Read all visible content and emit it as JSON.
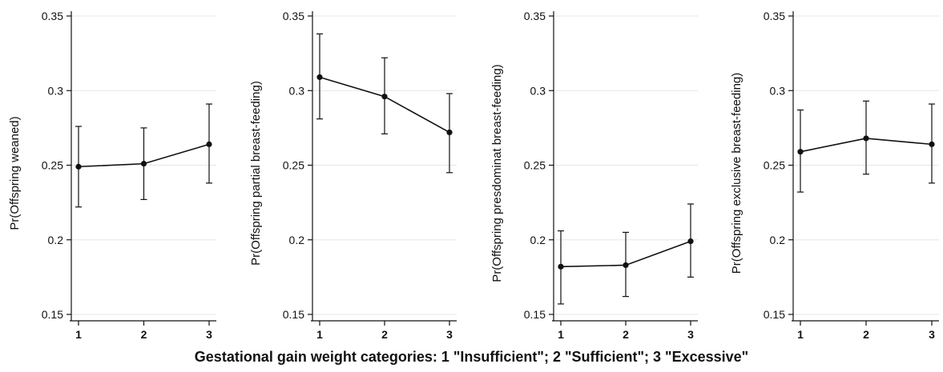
{
  "figure": {
    "xlabel": "Gestational gain weight categories: 1 \"Insufficient\"; 2 \"Sufficient\"; 3 \"Excessive\""
  },
  "chart_data": [
    {
      "type": "line",
      "ylabel": "Pr(Offspring weaned)",
      "x": [
        1,
        2,
        3
      ],
      "ylim": [
        0.15,
        0.35
      ],
      "yticks": [
        0.15,
        0.2,
        0.25,
        0.3,
        0.35
      ],
      "ytick_labels": [
        "0.15",
        "0.2",
        "0.25",
        "0.3",
        "0.35"
      ],
      "xtick_labels": [
        "1",
        "2",
        "3"
      ],
      "grid": true,
      "series": [
        {
          "values": [
            0.249,
            0.251,
            0.264
          ],
          "ci_low": [
            0.222,
            0.227,
            0.238
          ],
          "ci_high": [
            0.276,
            0.275,
            0.291
          ]
        }
      ]
    },
    {
      "type": "line",
      "ylabel": "Pr(Offspring partial breast-feeding)",
      "x": [
        1,
        2,
        3
      ],
      "ylim": [
        0.15,
        0.35
      ],
      "yticks": [
        0.15,
        0.2,
        0.25,
        0.3,
        0.35
      ],
      "ytick_labels": [
        "0.15",
        "0.2",
        "0.25",
        "0.3",
        "0.35"
      ],
      "xtick_labels": [
        "1",
        "2",
        "3"
      ],
      "grid": true,
      "series": [
        {
          "values": [
            0.309,
            0.296,
            0.272
          ],
          "ci_low": [
            0.281,
            0.271,
            0.245
          ],
          "ci_high": [
            0.338,
            0.322,
            0.298
          ]
        }
      ]
    },
    {
      "type": "line",
      "ylabel": "Pr(Offspring presdominat breast-feeding)",
      "x": [
        1,
        2,
        3
      ],
      "ylim": [
        0.15,
        0.35
      ],
      "yticks": [
        0.15,
        0.2,
        0.25,
        0.3,
        0.35
      ],
      "ytick_labels": [
        "0.15",
        "0.2",
        "0.25",
        "0.3",
        "0.35"
      ],
      "xtick_labels": [
        "1",
        "2",
        "3"
      ],
      "grid": true,
      "series": [
        {
          "values": [
            0.182,
            0.183,
            0.199
          ],
          "ci_low": [
            0.157,
            0.162,
            0.175
          ],
          "ci_high": [
            0.206,
            0.205,
            0.224
          ]
        }
      ]
    },
    {
      "type": "line",
      "ylabel": "Pr(Offspring exclusive breast-feeding)",
      "x": [
        1,
        2,
        3
      ],
      "ylim": [
        0.15,
        0.35
      ],
      "yticks": [
        0.15,
        0.2,
        0.25,
        0.3,
        0.35
      ],
      "ytick_labels": [
        "0.15",
        "0.2",
        "0.25",
        "0.3",
        "0.35"
      ],
      "xtick_labels": [
        "1",
        "2",
        "3"
      ],
      "grid": true,
      "series": [
        {
          "values": [
            0.259,
            0.268,
            0.264
          ],
          "ci_low": [
            0.232,
            0.244,
            0.238
          ],
          "ci_high": [
            0.287,
            0.293,
            0.291
          ]
        }
      ]
    }
  ]
}
